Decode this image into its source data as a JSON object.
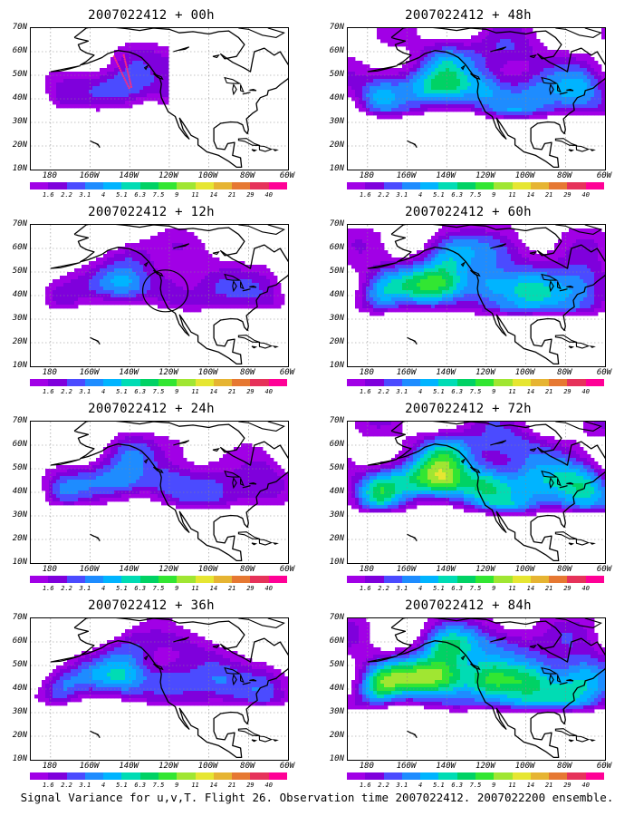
{
  "figure": {
    "caption": "Signal Variance for u,v,T. Flight 26. Observation time 2007022412. 2007022200 ensemble."
  },
  "axes": {
    "lat_labels": [
      "70N",
      "60N",
      "50N",
      "40N",
      "30N",
      "20N",
      "10N"
    ],
    "lon_labels": [
      "180",
      "160W",
      "140W",
      "120W",
      "100W",
      "80W",
      "60W"
    ],
    "grid": "dotted"
  },
  "colorbar": {
    "levels": [
      "1.6",
      "2.2",
      "3.1",
      "4",
      "5.1",
      "6.3",
      "7.5",
      "9",
      "11",
      "14",
      "21",
      "29",
      "40"
    ],
    "colors": [
      "#a100e6",
      "#7f00dc",
      "#4b4bff",
      "#1e8cff",
      "#00b4ff",
      "#00dcb4",
      "#00d264",
      "#32e632",
      "#a0e632",
      "#e6e632",
      "#e6b432",
      "#e67832",
      "#e6325a",
      "#ff0096"
    ]
  },
  "panels": [
    {
      "title": "2007022412 + 00h",
      "forecast_hour": 0,
      "mean_level": 0.6,
      "flight_track": true,
      "circle": false
    },
    {
      "title": "2007022412 + 48h",
      "forecast_hour": 48,
      "mean_level": 3.2,
      "flight_track": false,
      "circle": false
    },
    {
      "title": "2007022412 + 12h",
      "forecast_hour": 12,
      "mean_level": 1.6,
      "flight_track": false,
      "circle": true
    },
    {
      "title": "2007022412 + 60h",
      "forecast_hour": 60,
      "mean_level": 4.0,
      "flight_track": false,
      "circle": false
    },
    {
      "title": "2007022412 + 24h",
      "forecast_hour": 24,
      "mean_level": 2.2,
      "flight_track": false,
      "circle": false
    },
    {
      "title": "2007022412 + 72h",
      "forecast_hour": 72,
      "mean_level": 5.0,
      "flight_track": false,
      "circle": false
    },
    {
      "title": "2007022412 + 36h",
      "forecast_hour": 36,
      "mean_level": 2.8,
      "flight_track": false,
      "circle": false
    },
    {
      "title": "2007022412 + 84h",
      "forecast_hour": 84,
      "mean_level": 5.8,
      "flight_track": false,
      "circle": false
    }
  ]
}
